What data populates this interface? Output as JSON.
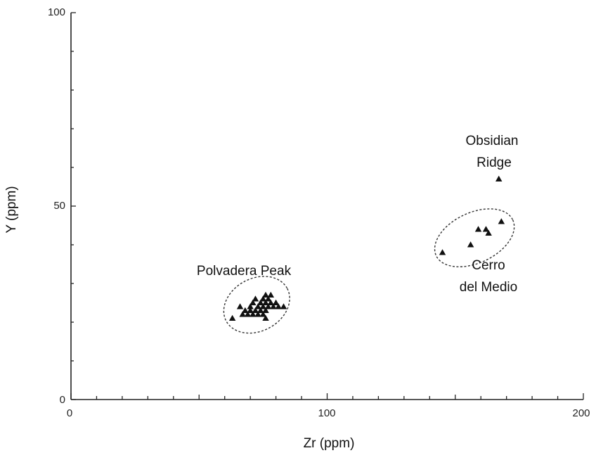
{
  "chart_data": {
    "type": "scatter",
    "title": "",
    "xlabel": "Zr (ppm)",
    "ylabel": "Y (ppm)",
    "xlim": [
      0,
      200
    ],
    "ylim": [
      0,
      100
    ],
    "x_ticks": [
      "0",
      "100",
      "200"
    ],
    "y_ticks": [
      "0",
      "50",
      "100"
    ],
    "x_minor_step": 10,
    "y_minor_step": 10,
    "grid": false,
    "marker": "triangle",
    "marker_color": "#111111",
    "groups": [
      {
        "name": "Polvadera Peak",
        "label_lines": [
          "Polvadera Peak"
        ],
        "ellipse": {
          "cx": 72.5,
          "cy": 24.5,
          "rx": 13.5,
          "ry": 6.8,
          "angle": 28
        },
        "points": [
          {
            "x": 63,
            "y": 21
          },
          {
            "x": 66,
            "y": 24
          },
          {
            "x": 67,
            "y": 22
          },
          {
            "x": 68,
            "y": 23
          },
          {
            "x": 69,
            "y": 22
          },
          {
            "x": 70,
            "y": 24
          },
          {
            "x": 70,
            "y": 23
          },
          {
            "x": 71,
            "y": 22
          },
          {
            "x": 71,
            "y": 25
          },
          {
            "x": 72,
            "y": 26
          },
          {
            "x": 72,
            "y": 23
          },
          {
            "x": 73,
            "y": 24
          },
          {
            "x": 73,
            "y": 22
          },
          {
            "x": 74,
            "y": 25
          },
          {
            "x": 74,
            "y": 23
          },
          {
            "x": 75,
            "y": 24
          },
          {
            "x": 75,
            "y": 26
          },
          {
            "x": 75,
            "y": 22
          },
          {
            "x": 76,
            "y": 27
          },
          {
            "x": 76,
            "y": 25
          },
          {
            "x": 76,
            "y": 23
          },
          {
            "x": 76,
            "y": 21
          },
          {
            "x": 77,
            "y": 24
          },
          {
            "x": 77,
            "y": 26
          },
          {
            "x": 78,
            "y": 25
          },
          {
            "x": 78,
            "y": 27
          },
          {
            "x": 79,
            "y": 24
          },
          {
            "x": 80,
            "y": 25
          },
          {
            "x": 81,
            "y": 24
          },
          {
            "x": 83,
            "y": 24
          }
        ]
      },
      {
        "name": "Cerro del Medio",
        "label_lines": [
          "Cerro",
          "del Medio"
        ],
        "ellipse": {
          "cx": 157.5,
          "cy": 41.8,
          "rx": 16.5,
          "ry": 6.5,
          "angle": 25
        },
        "points": [
          {
            "x": 145,
            "y": 38
          },
          {
            "x": 156,
            "y": 40
          },
          {
            "x": 159,
            "y": 44
          },
          {
            "x": 162,
            "y": 44
          },
          {
            "x": 163,
            "y": 43
          },
          {
            "x": 168,
            "y": 46
          }
        ]
      },
      {
        "name": "Obsidian Ridge",
        "label_lines": [
          "Obsidian",
          "Ridge"
        ],
        "points": [
          {
            "x": 167,
            "y": 57
          }
        ]
      }
    ]
  }
}
